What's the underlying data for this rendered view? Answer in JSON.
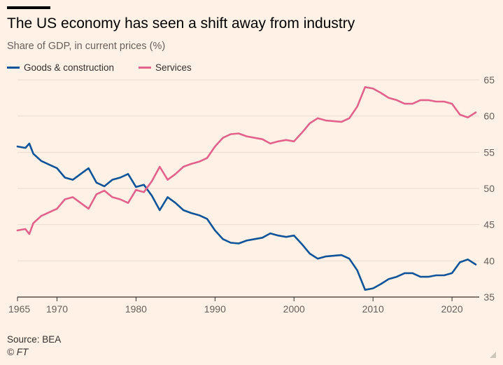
{
  "header": {
    "title": "The US economy has seen a shift away from industry",
    "subtitle": "Share of GDP, in current prices (%)"
  },
  "footer": {
    "source": "Source: BEA",
    "copyright": "© FT"
  },
  "colors": {
    "background": "#fff1e5",
    "goods": "#0f5499",
    "services": "#e3628c",
    "grid": "#e9dccf",
    "axis": "#33302e",
    "tick_text": "#66605c"
  },
  "chart_data": {
    "type": "line",
    "title": "The US economy has seen a shift away from industry",
    "subtitle": "Share of GDP, in current prices (%)",
    "xlabel": "",
    "ylabel": "",
    "xlim": [
      1965,
      2023
    ],
    "ylim": [
      35,
      65
    ],
    "y_axis_side": "right",
    "x_ticks": [
      1965,
      1970,
      1980,
      1990,
      2000,
      2010,
      2020
    ],
    "y_ticks": [
      35,
      40,
      45,
      50,
      55,
      60,
      65
    ],
    "grid": "horizontal",
    "legend_position": "top-left",
    "series": [
      {
        "name": "Goods & construction",
        "color": "#0f5499",
        "x": [
          1965,
          1966,
          1966.5,
          1967,
          1968,
          1969,
          1970,
          1971,
          1972,
          1973,
          1974,
          1975,
          1976,
          1977,
          1978,
          1979,
          1980,
          1981,
          1982,
          1983,
          1984,
          1985,
          1986,
          1987,
          1988,
          1989,
          1990,
          1991,
          1992,
          1993,
          1994,
          1995,
          1996,
          1997,
          1998,
          1999,
          2000,
          2001,
          2002,
          2003,
          2004,
          2005,
          2006,
          2007,
          2008,
          2009,
          2010,
          2011,
          2012,
          2013,
          2014,
          2015,
          2016,
          2017,
          2018,
          2019,
          2020,
          2021,
          2022,
          2023
        ],
        "values": [
          55.8,
          55.6,
          56.2,
          54.8,
          53.8,
          53.3,
          52.8,
          51.5,
          51.2,
          52.0,
          52.8,
          50.8,
          50.3,
          51.2,
          51.5,
          52.0,
          50.2,
          50.5,
          49.0,
          47.0,
          48.8,
          48.0,
          47.0,
          46.6,
          46.3,
          45.8,
          44.2,
          43.0,
          42.5,
          42.4,
          42.8,
          43.0,
          43.2,
          43.8,
          43.5,
          43.3,
          43.5,
          42.3,
          41.0,
          40.3,
          40.6,
          40.7,
          40.8,
          40.3,
          38.7,
          36.0,
          36.2,
          36.8,
          37.5,
          37.8,
          38.3,
          38.3,
          37.8,
          37.8,
          38.0,
          38.0,
          38.3,
          39.8,
          40.2,
          39.5
        ]
      },
      {
        "name": "Services",
        "color": "#e3628c",
        "x": [
          1965,
          1966,
          1966.5,
          1967,
          1968,
          1969,
          1970,
          1971,
          1972,
          1973,
          1974,
          1975,
          1976,
          1977,
          1978,
          1979,
          1980,
          1981,
          1982,
          1983,
          1984,
          1985,
          1986,
          1987,
          1988,
          1989,
          1990,
          1991,
          1992,
          1993,
          1994,
          1995,
          1996,
          1997,
          1998,
          1999,
          2000,
          2001,
          2002,
          2003,
          2004,
          2005,
          2006,
          2007,
          2008,
          2009,
          2010,
          2011,
          2012,
          2013,
          2014,
          2015,
          2016,
          2017,
          2018,
          2019,
          2020,
          2021,
          2022,
          2023
        ],
        "values": [
          44.2,
          44.4,
          43.7,
          45.2,
          46.2,
          46.7,
          47.2,
          48.5,
          48.8,
          48.0,
          47.2,
          49.2,
          49.7,
          48.8,
          48.5,
          48.0,
          49.8,
          49.5,
          51.0,
          53.0,
          51.2,
          52.0,
          53.0,
          53.4,
          53.7,
          54.2,
          55.8,
          57.0,
          57.5,
          57.6,
          57.2,
          57.0,
          56.8,
          56.2,
          56.5,
          56.7,
          56.5,
          57.7,
          59.0,
          59.7,
          59.4,
          59.3,
          59.2,
          59.7,
          61.3,
          64.0,
          63.8,
          63.2,
          62.5,
          62.2,
          61.7,
          61.7,
          62.2,
          62.2,
          62.0,
          62.0,
          61.7,
          60.2,
          59.8,
          60.5
        ]
      }
    ]
  }
}
